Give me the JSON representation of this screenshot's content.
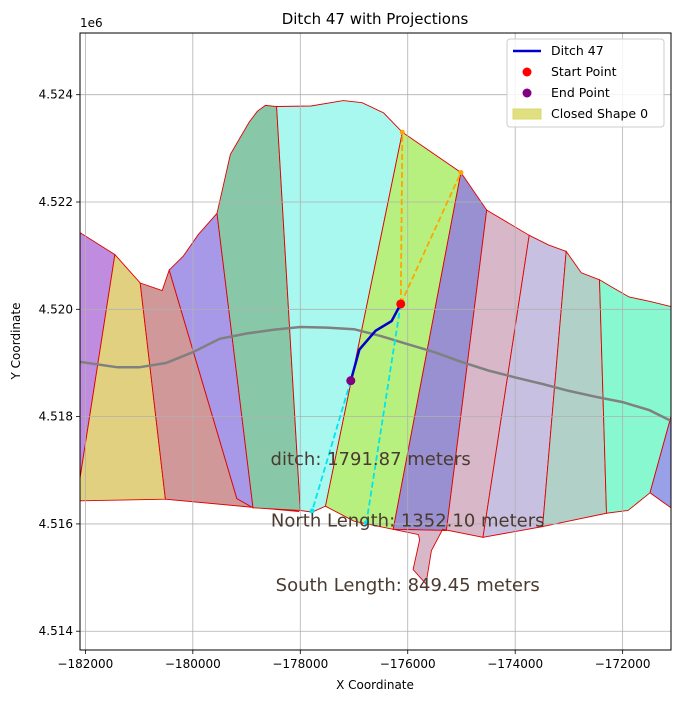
{
  "chart_data": {
    "type": "line",
    "title": "Ditch 47 with Projections",
    "xlabel": "X Coordinate",
    "ylabel": "Y Coordinate",
    "y_offset_label": "1e6",
    "xlim": [
      -182100,
      -171100
    ],
    "ylim": [
      4.51365,
      4.52515
    ],
    "x_ticks": [
      -182000,
      -180000,
      -178000,
      -176000,
      -174000,
      -172000
    ],
    "x_tick_labels": [
      "−182000",
      "−180000",
      "−178000",
      "−176000",
      "−174000",
      "−172000"
    ],
    "y_ticks": [
      4.514,
      4.516,
      4.518,
      4.52,
      4.522,
      4.524
    ],
    "y_tick_labels": [
      "4.514",
      "4.516",
      "4.518",
      "4.520",
      "4.522",
      "4.524"
    ],
    "grid": true,
    "legend_position": "top-right",
    "legend": [
      {
        "label": "Ditch 47",
        "kind": "line",
        "color": "#0000cd"
      },
      {
        "label": "Start Point",
        "kind": "point",
        "color": "#ff0000"
      },
      {
        "label": "End Point",
        "kind": "point",
        "color": "#800080"
      },
      {
        "label": "Closed Shape 0",
        "kind": "patch",
        "color": "#e0e080"
      }
    ],
    "parcels": [
      {
        "color": "#c08ce0",
        "points": [
          [
            -182100,
            4.52143
          ],
          [
            -181450,
            4.52102
          ],
          [
            -182100,
            4.51685
          ]
        ]
      },
      {
        "color": "#e0d080",
        "points": [
          [
            -181450,
            4.52102
          ],
          [
            -180980,
            4.52049
          ],
          [
            -180510,
            4.51646
          ],
          [
            -182100,
            4.51643
          ],
          [
            -182100,
            4.51685
          ]
        ]
      },
      {
        "color": "#d09898",
        "points": [
          [
            -180980,
            4.52049
          ],
          [
            -180570,
            4.52035
          ],
          [
            -180440,
            4.52073
          ],
          [
            -179180,
            4.51647
          ],
          [
            -178020,
            4.51623
          ],
          [
            -180510,
            4.51646
          ]
        ]
      },
      {
        "color": "#a898e8",
        "points": [
          [
            -180440,
            4.52073
          ],
          [
            -180180,
            4.52099
          ],
          [
            -179900,
            4.52139
          ],
          [
            -179550,
            4.52179
          ],
          [
            -178880,
            4.5163
          ],
          [
            -179180,
            4.51647
          ]
        ]
      },
      {
        "color": "#88c8a8",
        "points": [
          [
            -179550,
            4.52179
          ],
          [
            -179300,
            4.52289
          ],
          [
            -178950,
            4.52349
          ],
          [
            -178800,
            4.52369
          ],
          [
            -178650,
            4.5238
          ],
          [
            -178440,
            4.52378
          ],
          [
            -178000,
            4.51625
          ],
          [
            -178880,
            4.5163
          ]
        ]
      },
      {
        "color": "#a8f8f0",
        "points": [
          [
            -178440,
            4.52378
          ],
          [
            -177800,
            4.52379
          ],
          [
            -177200,
            4.52389
          ],
          [
            -176850,
            4.52385
          ],
          [
            -176450,
            4.52366
          ],
          [
            -176100,
            4.5233
          ],
          [
            -177530,
            4.51633
          ],
          [
            -177780,
            4.51622
          ],
          [
            -178000,
            4.51625
          ]
        ]
      },
      {
        "color": "#b8f080",
        "points": [
          [
            -176100,
            4.5233
          ],
          [
            -175010,
            4.52255
          ],
          [
            -176270,
            4.5159
          ],
          [
            -177000,
            4.51605
          ],
          [
            -177530,
            4.51633
          ]
        ]
      },
      {
        "color": "#9890d0",
        "points": [
          [
            -175010,
            4.52255
          ],
          [
            -174530,
            4.52185
          ],
          [
            -175280,
            4.51588
          ],
          [
            -176270,
            4.5159
          ]
        ]
      },
      {
        "color": "#d8b8c8",
        "points": [
          [
            -174530,
            4.52185
          ],
          [
            -173740,
            4.52138
          ],
          [
            -174600,
            4.51575
          ],
          [
            -175350,
            4.5159
          ],
          [
            -175560,
            4.5155
          ],
          [
            -175660,
            4.51488
          ],
          [
            -175900,
            4.51515
          ],
          [
            -175780,
            4.5157
          ],
          [
            -175800,
            4.5158
          ],
          [
            -176270,
            4.5159
          ],
          [
            -175280,
            4.51588
          ]
        ]
      },
      {
        "color": "#c8c0e0",
        "points": [
          [
            -173740,
            4.52138
          ],
          [
            -173380,
            4.5212
          ],
          [
            -173050,
            4.52108
          ],
          [
            -173490,
            4.51595
          ],
          [
            -174600,
            4.51575
          ]
        ]
      },
      {
        "color": "#b0d0c8",
        "points": [
          [
            -173050,
            4.52108
          ],
          [
            -172770,
            4.52068
          ],
          [
            -172430,
            4.52055
          ],
          [
            -172300,
            4.5162
          ],
          [
            -173490,
            4.51595
          ]
        ]
      },
      {
        "color": "#88f8d0",
        "points": [
          [
            -172430,
            4.52055
          ],
          [
            -172180,
            4.5204
          ],
          [
            -171880,
            4.52023
          ],
          [
            -171500,
            4.52015
          ],
          [
            -171100,
            4.52005
          ],
          [
            -171100,
            4.518
          ],
          [
            -171490,
            4.51658
          ],
          [
            -171900,
            4.51625
          ],
          [
            -172300,
            4.5162
          ]
        ]
      },
      {
        "color": "#98a0e8",
        "points": [
          [
            -171100,
            4.518
          ],
          [
            -171100,
            4.5163
          ],
          [
            -171490,
            4.51658
          ]
        ]
      }
    ],
    "road": [
      [
        -182100,
        4.51902
      ],
      [
        -181400,
        4.51892
      ],
      [
        -181000,
        4.51892
      ],
      [
        -180500,
        4.519
      ],
      [
        -180000,
        4.5192
      ],
      [
        -179500,
        4.51945
      ],
      [
        -179000,
        4.51955
      ],
      [
        -178500,
        4.51962
      ],
      [
        -178000,
        4.51967
      ],
      [
        -177500,
        4.51966
      ],
      [
        -177000,
        4.51963
      ],
      [
        -176500,
        4.5195
      ],
      [
        -176000,
        4.51935
      ],
      [
        -175500,
        4.5192
      ],
      [
        -175000,
        4.51902
      ],
      [
        -174500,
        4.51886
      ],
      [
        -174000,
        4.51873
      ],
      [
        -173500,
        4.51861
      ],
      [
        -173000,
        4.51848
      ],
      [
        -172500,
        4.51837
      ],
      [
        -172000,
        4.51827
      ],
      [
        -171500,
        4.51812
      ],
      [
        -171100,
        4.51792
      ]
    ],
    "ditch": {
      "name": "Ditch 47",
      "color": "#0000cd",
      "points": [
        [
          -176130,
          4.5201
        ],
        [
          -176300,
          4.51978
        ],
        [
          -176600,
          4.5196
        ],
        [
          -176900,
          4.51925
        ],
        [
          -177060,
          4.51867
        ]
      ]
    },
    "start_point": {
      "x": -176130,
      "y": 4.5201,
      "color": "#ff0000"
    },
    "end_point": {
      "x": -177060,
      "y": 4.51867,
      "color": "#800080"
    },
    "projections": [
      {
        "color": "#00e5ee",
        "from": [
          -177060,
          4.51867
        ],
        "to": [
          -177780,
          4.51624
        ]
      },
      {
        "color": "#00e5ee",
        "from": [
          -176130,
          4.5201
        ],
        "to": [
          -176770,
          4.51602
        ]
      },
      {
        "color": "#ffa500",
        "from": [
          -176130,
          4.5201
        ],
        "to": [
          -175010,
          4.52255
        ]
      },
      {
        "color": "#ffa500",
        "from": [
          -176130,
          4.5201
        ],
        "to": [
          -176100,
          4.5233
        ]
      }
    ],
    "projection_markers": [
      {
        "x": -177780,
        "y": 4.51624,
        "color": "#00e5ee"
      },
      {
        "x": -176770,
        "y": 4.51602,
        "color": "#00e5ee"
      },
      {
        "x": -175010,
        "y": 4.52255,
        "color": "#ffa500"
      },
      {
        "x": -176100,
        "y": 4.5233,
        "color": "#ffa500"
      }
    ],
    "annotations": [
      {
        "text": "ditch: 1791.87 meters",
        "x": -176690,
        "y": 4.5171
      },
      {
        "text": "North Length: 1352.10 meters",
        "x": -176000,
        "y": 4.51595
      },
      {
        "text": "South Length: 849.45 meters",
        "x": -176000,
        "y": 4.51475
      }
    ]
  }
}
